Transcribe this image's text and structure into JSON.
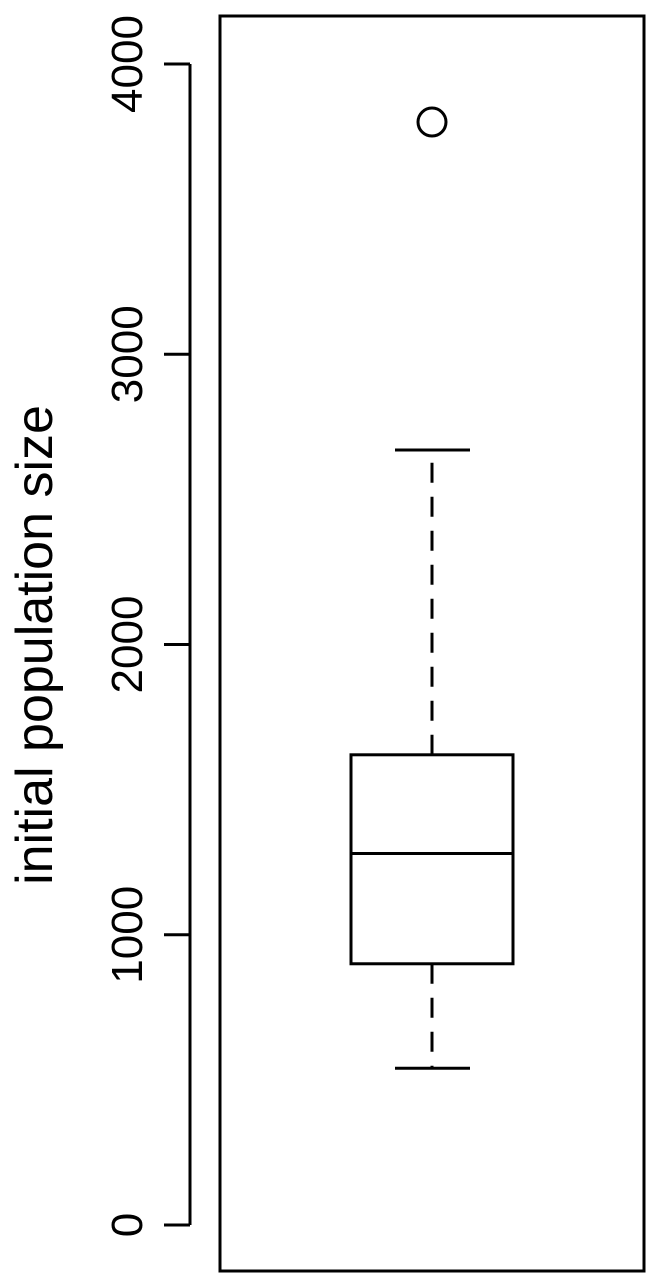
{
  "chart_data": {
    "type": "box",
    "ylabel": "initial population size",
    "xlabel": "",
    "title": "",
    "ylim": [
      0,
      4000
    ],
    "yticks": [
      0,
      1000,
      2000,
      3000,
      4000
    ],
    "ytick_labels": [
      "0",
      "1000",
      "2000",
      "3000",
      "4000"
    ],
    "box": {
      "whisker_low": 540,
      "q1": 900,
      "median": 1280,
      "q3": 1620,
      "whisker_high": 2670,
      "outliers": [
        3800
      ]
    },
    "grid": false,
    "legend": "none"
  }
}
